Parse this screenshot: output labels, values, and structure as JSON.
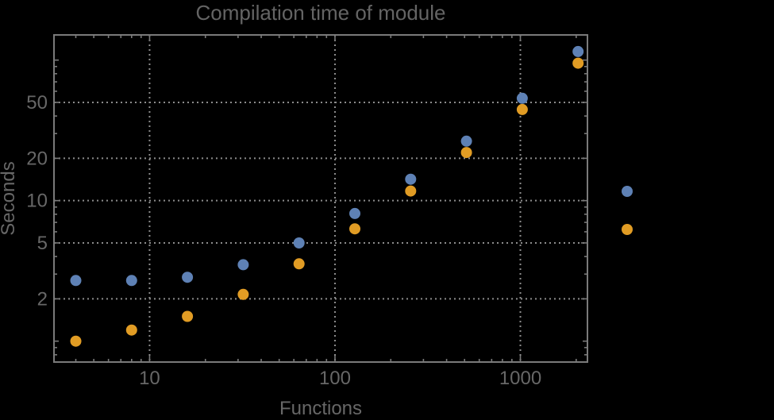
{
  "chart_data": {
    "type": "scatter",
    "title": "Compilation time of module",
    "xlabel": "Functions",
    "ylabel": "Seconds",
    "xscale": "log",
    "yscale": "log",
    "xlim": [
      3.05,
      2300
    ],
    "ylim": [
      0.71,
      151
    ],
    "grid": true,
    "grid_style": "dotted-gray",
    "x": [
      4,
      8,
      16,
      32,
      64,
      128,
      256,
      512,
      1024,
      2048
    ],
    "series": [
      {
        "name": "blue-series",
        "color": "#5E81B5",
        "values": [
          2.7,
          2.7,
          2.85,
          3.5,
          5.0,
          8.1,
          14.2,
          26.5,
          53.5,
          115
        ]
      },
      {
        "name": "orange-series",
        "color": "#E19C24",
        "values": [
          1.0,
          1.2,
          1.5,
          2.15,
          3.55,
          6.3,
          11.7,
          22,
          44.5,
          95
        ]
      }
    ],
    "x_tick_values": [
      10,
      100,
      1000
    ],
    "x_tick_labels": [
      "10",
      "100",
      "1000"
    ],
    "y_tick_values": [
      2,
      5,
      10,
      20,
      50
    ],
    "y_tick_labels": [
      "2",
      "5",
      "10",
      "20",
      "50"
    ],
    "y_unlabeled_major_ticks": [
      1,
      100
    ],
    "legend": {
      "position": "right-outside",
      "labels_visible": false,
      "items": [
        {
          "series": "blue-series",
          "color": "#5E81B5"
        },
        {
          "series": "orange-series",
          "color": "#E19C24"
        }
      ]
    }
  },
  "colors": {
    "background": "#000000",
    "frame": "#7a7a7a",
    "gridlines": "#8c8c8c",
    "text": "#676767"
  }
}
